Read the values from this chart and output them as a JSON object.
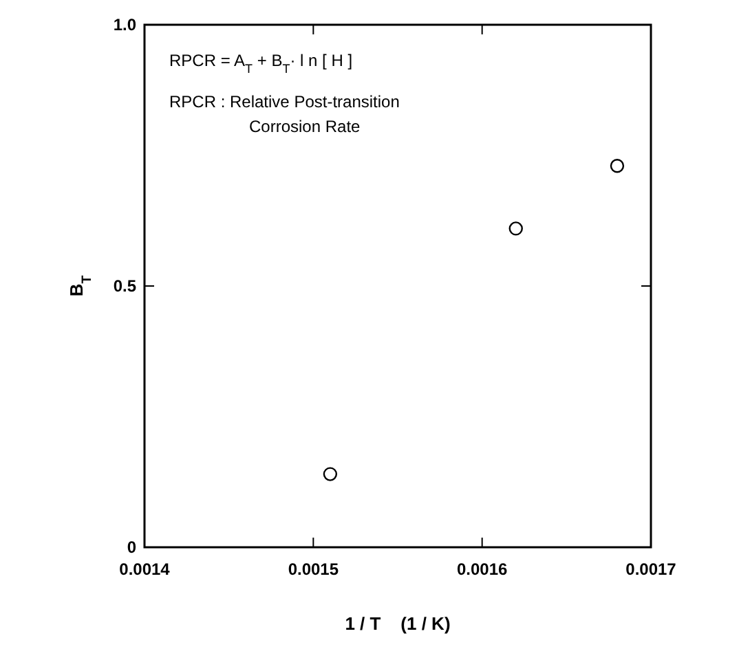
{
  "chart_data": {
    "type": "scatter",
    "xlabel": "1 / T    (1 / K)",
    "ylabel": "B$_{T}$",
    "x": [
      0.00151,
      0.00162,
      0.00168
    ],
    "series": [
      {
        "color": "#000000",
        "values": [
          0.14,
          0.61,
          0.73
        ]
      }
    ],
    "xlim": [
      0.0014,
      0.0017
    ],
    "xticks": [
      0.0014,
      0.0015,
      0.0016,
      0.0017
    ],
    "ylim": [
      0,
      1
    ],
    "yticks": [
      0,
      {
        "value": 0.5,
        "label": "0.5"
      },
      {
        "value": 1,
        "label": "1.0"
      }
    ],
    "marker": "circle",
    "grid": false,
    "annotations": [
      "RPCR = A$_{T}$ + B$_{T}$· l n [ H ]",
      "RPCR : Relative Post-transition\nCorrosion Rate"
    ]
  }
}
